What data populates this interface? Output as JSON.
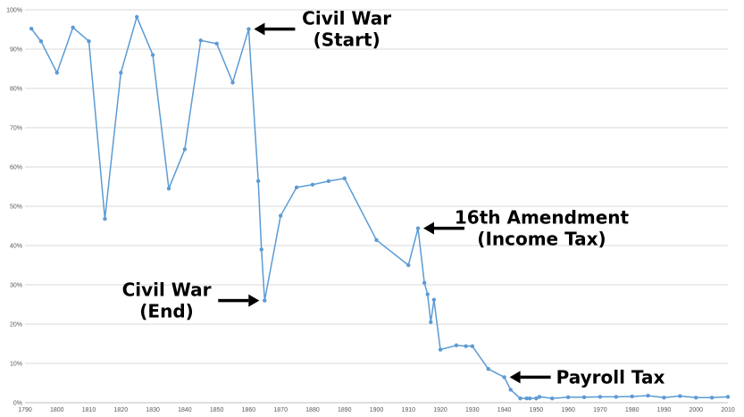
{
  "chart_data": {
    "type": "line",
    "xlim": [
      1790,
      2010
    ],
    "ylim": [
      0,
      100
    ],
    "grid": true,
    "legend": "none",
    "x_ticks": [
      1790,
      1800,
      1810,
      1820,
      1830,
      1840,
      1850,
      1860,
      1870,
      1880,
      1890,
      1900,
      1910,
      1920,
      1930,
      1940,
      1950,
      1960,
      1970,
      1980,
      1990,
      2000,
      2010
    ],
    "x_tick_labels": [
      "1790",
      "1800",
      "1810",
      "1820",
      "1830",
      "1840",
      "1850",
      "1860",
      "1870",
      "1880",
      "1890",
      "1900",
      "1910",
      "1920",
      "1930",
      "1940",
      "1950",
      "1960",
      "1970",
      "1980",
      "1990",
      "2000",
      "2010"
    ],
    "y_ticks": [
      0,
      10,
      20,
      30,
      40,
      50,
      60,
      70,
      80,
      90,
      100
    ],
    "y_tick_labels": [
      "0%",
      "10%",
      "20%",
      "30%",
      "40%",
      "50%",
      "60%",
      "70%",
      "80%",
      "90%",
      "100%"
    ],
    "colors": {
      "series": "#5b9bd5",
      "grid": "#d9d9d9",
      "arrow": "#000000"
    },
    "series": [
      {
        "points": [
          [
            1792,
            95.2
          ],
          [
            1795,
            92
          ],
          [
            1800,
            84
          ],
          [
            1805,
            95.5
          ],
          [
            1810,
            92
          ],
          [
            1815,
            46.8
          ],
          [
            1820,
            84
          ],
          [
            1825,
            98.2
          ],
          [
            1830,
            88.5
          ],
          [
            1835,
            54.5
          ],
          [
            1840,
            64.5
          ],
          [
            1845,
            92.2
          ],
          [
            1850,
            91.4
          ],
          [
            1855,
            81.5
          ],
          [
            1860,
            95.1
          ],
          [
            1863,
            56.4
          ],
          [
            1864,
            39
          ],
          [
            1865,
            26
          ],
          [
            1870,
            47.6
          ],
          [
            1875,
            54.8
          ],
          [
            1880,
            55.5
          ],
          [
            1885,
            56.4
          ],
          [
            1890,
            57.1
          ],
          [
            1900,
            41.4
          ],
          [
            1910,
            35
          ],
          [
            1913,
            44.4
          ],
          [
            1915,
            30.5
          ],
          [
            1916,
            27.6
          ],
          [
            1917,
            20.5
          ],
          [
            1918,
            26.2
          ],
          [
            1920,
            13.5
          ],
          [
            1925,
            14.6
          ],
          [
            1928,
            14.4
          ],
          [
            1930,
            14.4
          ],
          [
            1935,
            8.6
          ],
          [
            1940,
            6.5
          ],
          [
            1942,
            3.3
          ],
          [
            1945,
            1.1
          ],
          [
            1947,
            1.1
          ],
          [
            1948,
            1.1
          ],
          [
            1950,
            1.1
          ],
          [
            1951,
            1.5
          ],
          [
            1955,
            1.1
          ],
          [
            1960,
            1.4
          ],
          [
            1965,
            1.4
          ],
          [
            1970,
            1.5
          ],
          [
            1975,
            1.5
          ],
          [
            1980,
            1.6
          ],
          [
            1985,
            1.8
          ],
          [
            1990,
            1.3
          ],
          [
            1995,
            1.7
          ],
          [
            2000,
            1.3
          ],
          [
            2005,
            1.3
          ],
          [
            2010,
            1.5
          ]
        ]
      }
    ],
    "annotations": [
      {
        "lines": [
          "Civil War",
          "(Start)"
        ],
        "target": [
          1860,
          95.1
        ],
        "side": "right"
      },
      {
        "lines": [
          "Civil War",
          "(End)"
        ],
        "target": [
          1865,
          26
        ],
        "side": "left"
      },
      {
        "lines": [
          "16th Amendment",
          "(Income Tax)"
        ],
        "target": [
          1913,
          44.4
        ],
        "side": "right"
      },
      {
        "lines": [
          "Payroll Tax"
        ],
        "target": [
          1940,
          6.5
        ],
        "side": "right"
      }
    ]
  }
}
